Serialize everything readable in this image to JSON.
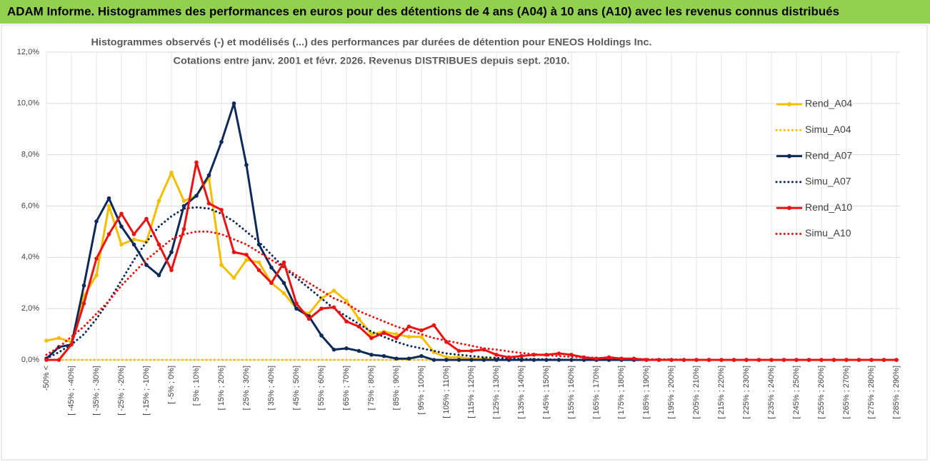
{
  "header": {
    "title": "ADAM Informe. Histogrammes des performances en euros pour des détentions de 4 ans (A04) à 10 ans (A10) avec les revenus connus distribués"
  },
  "chart_data": {
    "type": "line",
    "title": "Histogrammes observés (-) et modélisés (...) des performances par durées de détention pour ENEOS Holdings Inc.",
    "subtitle": "Cotations entre janv. 2001 et févr. 2026. Revenus DISTRIBUES depuis sept. 2010.",
    "categories": [
      "-50% <",
      null,
      "[ -45% ; -40%]",
      null,
      "[ -35% ; -30%]",
      null,
      "[ -25% ; -20%]",
      null,
      "[ -15% ; -10%]",
      null,
      "[ -5% ; 0%]",
      null,
      "[ 5% ; 10%]",
      null,
      "[ 15% ; 20%]",
      null,
      "[ 25% ; 30%]",
      null,
      "[ 35% ; 40%]",
      null,
      "[ 45% ; 50%]",
      null,
      "[ 55% ; 60%]",
      null,
      "[ 65% ; 70%]",
      null,
      "[ 75% ; 80%]",
      null,
      "[ 85% ; 90%]",
      null,
      "[ 95% ; 100%]",
      null,
      "[ 105% ; 110%]",
      null,
      "[ 115% ; 120%]",
      null,
      "[ 125% ; 130%]",
      null,
      "[ 135% ; 140%]",
      null,
      "[ 145% ; 150%]",
      null,
      "[ 155% ; 160%]",
      null,
      "[ 165% ; 170%]",
      null,
      "[ 175% ; 180%]",
      null,
      "[ 185% ; 190%]",
      null,
      "[ 195% ; 200%]",
      null,
      "[ 205% ; 210%]",
      null,
      "[ 215% ; 220%]",
      null,
      "[ 225% ; 230%]",
      null,
      "[ 235% ; 240%]",
      null,
      "[ 245% ; 250%]",
      null,
      "[ 255% ; 260%]",
      null,
      "[ 265% ; 270%]",
      null,
      "[ 275% ; 280%]",
      null,
      "[ 285% ; 290%]"
    ],
    "series": [
      {
        "name": "Rend_A04",
        "color": "#f5bf00",
        "line_style": "solid",
        "markers": true,
        "values": [
          0.75,
          0.85,
          0.7,
          2.5,
          3.3,
          6.0,
          4.5,
          4.7,
          4.6,
          6.2,
          7.3,
          6.2,
          6.4,
          7.1,
          3.7,
          3.2,
          3.9,
          3.8,
          3.0,
          2.6,
          2.0,
          1.8,
          2.4,
          2.7,
          2.3,
          1.6,
          1.0,
          1.1,
          1.0,
          0.9,
          0.9,
          0.3,
          0.1,
          0.1,
          0.05,
          0.05,
          0,
          0,
          0,
          0,
          0,
          0,
          0,
          0,
          0,
          0,
          0,
          0,
          0,
          0,
          0,
          0,
          0,
          0,
          0,
          0,
          0,
          0,
          0,
          0,
          0,
          0,
          0,
          0,
          0,
          0,
          0,
          0,
          0
        ]
      },
      {
        "name": "Simu_A04",
        "color": "#f5bf00",
        "line_style": "dotted",
        "markers": false,
        "values": [
          0,
          0,
          0,
          0,
          0,
          0,
          0,
          0,
          0,
          0,
          0,
          0,
          0,
          0,
          0,
          0,
          0,
          0,
          0,
          0,
          0,
          0,
          0,
          0,
          0,
          0,
          0,
          0,
          0,
          0,
          0,
          0,
          0,
          0,
          0,
          0,
          0,
          0,
          0,
          0,
          0,
          0,
          0,
          0,
          0,
          0,
          0,
          0,
          0,
          0,
          0,
          0,
          0,
          0,
          0,
          0,
          0,
          0,
          0,
          0,
          0,
          0,
          0,
          0,
          0,
          0,
          0,
          0,
          0
        ]
      },
      {
        "name": "Rend_A07",
        "color": "#0e2a5a",
        "line_style": "solid",
        "markers": true,
        "values": [
          0.05,
          0.5,
          0.6,
          2.9,
          5.4,
          6.3,
          5.2,
          4.5,
          3.7,
          3.3,
          4.2,
          6.0,
          6.4,
          7.2,
          8.5,
          10.0,
          7.6,
          4.5,
          3.6,
          3.0,
          2.0,
          1.7,
          0.95,
          0.4,
          0.45,
          0.35,
          0.2,
          0.15,
          0.05,
          0.05,
          0.15,
          0,
          0,
          0,
          0,
          0,
          0,
          0,
          0,
          0,
          0,
          0,
          0,
          0,
          0,
          0,
          0,
          0,
          0,
          0,
          0,
          0,
          0,
          0,
          0,
          0,
          0,
          0,
          0,
          0,
          0,
          0,
          0,
          0,
          0,
          0,
          0,
          0,
          0
        ]
      },
      {
        "name": "Simu_A07",
        "color": "#0e2a5a",
        "line_style": "dotted",
        "markers": false,
        "values": [
          0.05,
          0.3,
          0.6,
          1.0,
          1.6,
          2.3,
          3.1,
          3.9,
          4.6,
          5.2,
          5.6,
          5.9,
          5.95,
          5.9,
          5.7,
          5.4,
          5.0,
          4.6,
          4.1,
          3.6,
          3.2,
          2.8,
          2.4,
          2.0,
          1.7,
          1.4,
          1.1,
          0.9,
          0.7,
          0.55,
          0.45,
          0.35,
          0.25,
          0.2,
          0.15,
          0.1,
          0.08,
          0.06,
          0.04,
          0.03,
          0.02,
          0.01,
          0,
          0,
          0,
          0,
          0,
          0,
          0,
          0,
          0,
          0,
          0,
          0,
          0,
          0,
          0,
          0,
          0,
          0,
          0,
          0,
          0,
          0,
          0,
          0,
          0,
          0,
          0
        ]
      },
      {
        "name": "Rend_A10",
        "color": "#ee1111",
        "line_style": "solid",
        "markers": true,
        "values": [
          0,
          0,
          0.6,
          2.2,
          3.95,
          4.9,
          5.7,
          4.9,
          5.5,
          4.5,
          3.5,
          5.1,
          7.7,
          6.1,
          5.85,
          4.2,
          4.1,
          3.5,
          3.0,
          3.8,
          2.2,
          1.6,
          2.0,
          2.05,
          1.5,
          1.3,
          0.85,
          1.05,
          0.85,
          1.3,
          1.15,
          1.35,
          0.7,
          0.35,
          0.35,
          0.4,
          0.2,
          0.1,
          0.15,
          0.2,
          0.2,
          0.25,
          0.2,
          0.1,
          0.05,
          0.1,
          0.05,
          0.05,
          0,
          0,
          0,
          0,
          0,
          0,
          0,
          0,
          0,
          0,
          0,
          0,
          0,
          0,
          0,
          0,
          0,
          0,
          0,
          0,
          0
        ]
      },
      {
        "name": "Simu_A10",
        "color": "#ee1111",
        "line_style": "dotted",
        "markers": false,
        "values": [
          0.2,
          0.5,
          0.9,
          1.3,
          1.8,
          2.3,
          2.9,
          3.4,
          3.9,
          4.3,
          4.7,
          4.9,
          5.0,
          5.0,
          4.9,
          4.7,
          4.5,
          4.2,
          3.9,
          3.6,
          3.3,
          3.0,
          2.7,
          2.4,
          2.2,
          1.9,
          1.7,
          1.5,
          1.3,
          1.15,
          1.0,
          0.85,
          0.75,
          0.65,
          0.55,
          0.45,
          0.4,
          0.33,
          0.27,
          0.22,
          0.18,
          0.15,
          0.12,
          0.1,
          0.08,
          0.06,
          0.05,
          0.04,
          0.03,
          0.02,
          0.02,
          0.01,
          0,
          0,
          0,
          0,
          0,
          0,
          0,
          0,
          0,
          0,
          0,
          0,
          0,
          0,
          0,
          0,
          0
        ]
      }
    ],
    "ylim": [
      0,
      12
    ],
    "yticks": [
      {
        "value": 0,
        "label": "0,0%"
      },
      {
        "value": 2,
        "label": "2,0%"
      },
      {
        "value": 4,
        "label": "4,0%"
      },
      {
        "value": 6,
        "label": "6,0%"
      },
      {
        "value": 8,
        "label": "8,0%"
      },
      {
        "value": 10,
        "label": "10,0%"
      },
      {
        "value": 12,
        "label": "12,0%"
      }
    ],
    "grid": true,
    "legend": "right"
  }
}
